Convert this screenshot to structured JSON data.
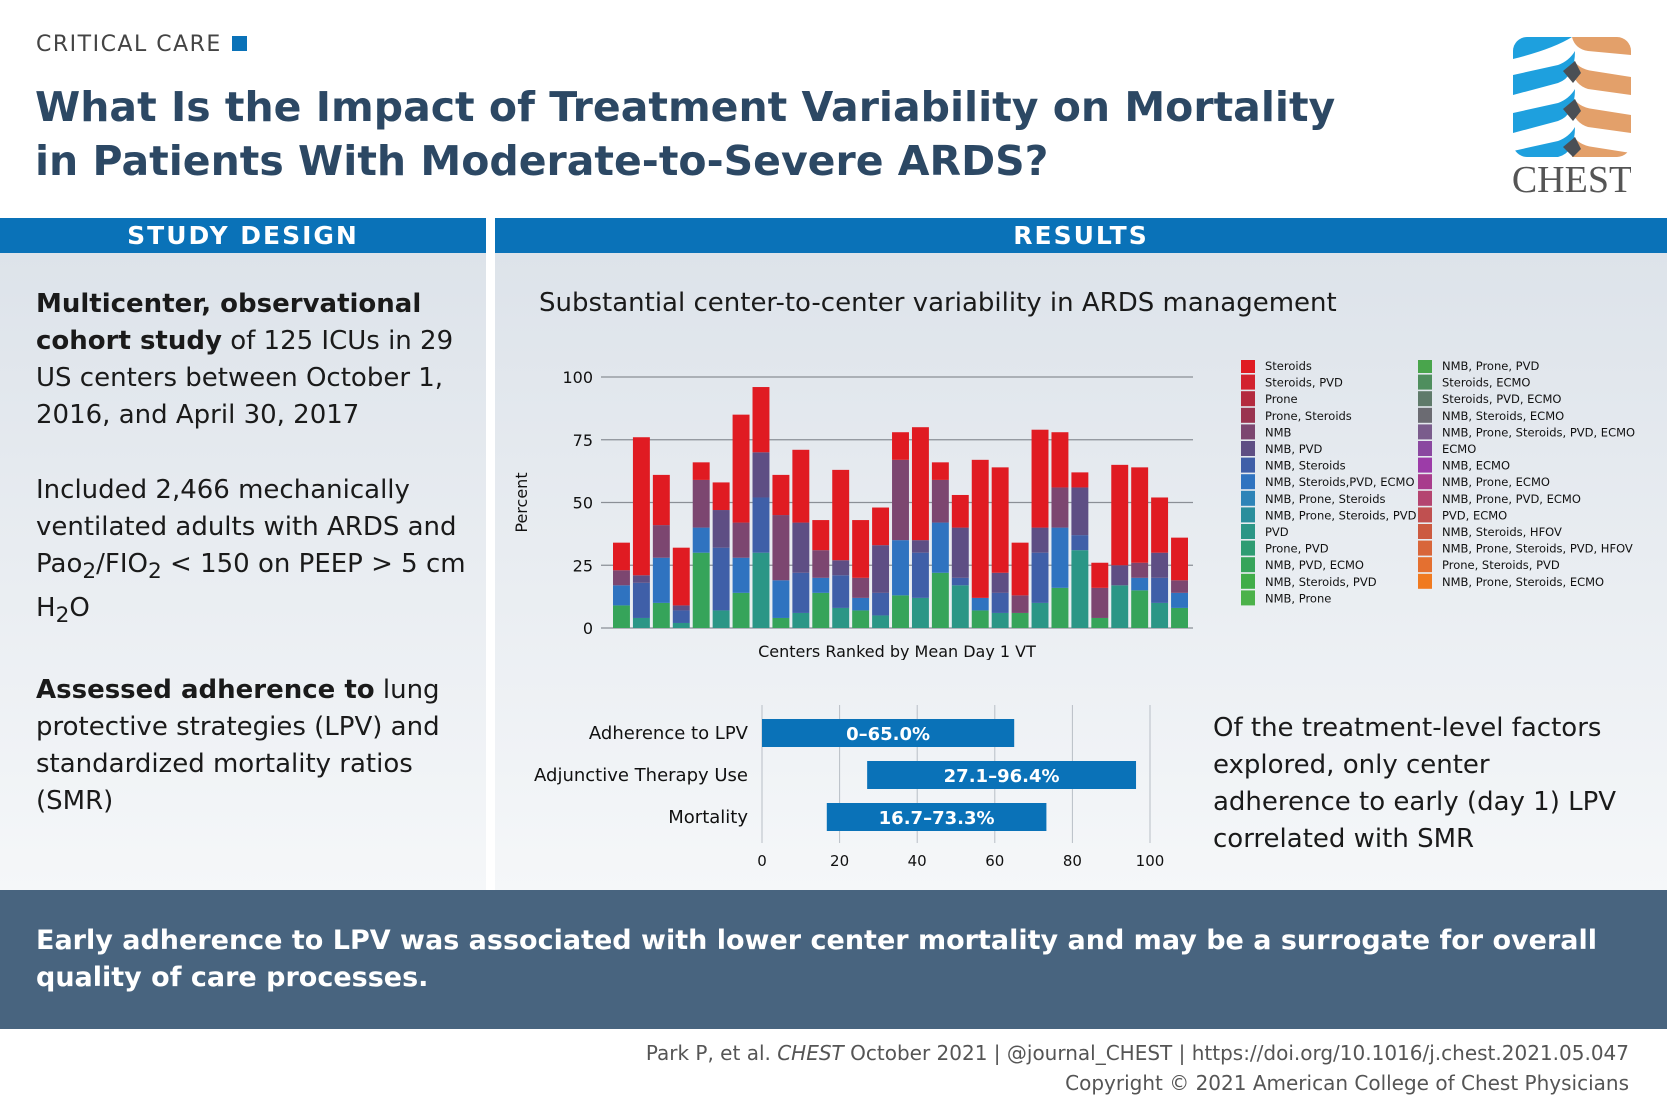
{
  "header": {
    "section": "CRITICAL CARE",
    "title_line1": "What Is the Impact of Treatment Variability on Mortality",
    "title_line2": "in Patients With Moderate-to-Severe ARDS?",
    "logo_text": "CHEST"
  },
  "study_design": {
    "heading": "STUDY DESIGN",
    "p1_bold": "Multicenter, observational cohort study",
    "p1_rest": " of 125 ICUs in 29 US centers between October 1, 2016, and April 30, 2017",
    "p2_a": "Included 2,466 mechanically ventilated adults with ARDS and Pao",
    "p2_sub1": "2",
    "p2_b": "/FIO",
    "p2_sub2": "2",
    "p2_c": " < 150 on PEEP > 5 cm H",
    "p2_sub3": "2",
    "p2_d": "O",
    "p3_bold": "Assessed adherence to",
    "p3_rest": " lung protective strategies (LPV) and standardized mortality ratios (SMR)"
  },
  "results": {
    "heading": "RESULTS",
    "chart_title": "Substantial center-to-center variability in ARDS management",
    "conclusion": "Of the treatment-level factors explored, only center adherence to early (day 1) LPV correlated with SMR"
  },
  "takeaway": "Early adherence to LPV was associated with lower center mortality and may be a surrogate for overall quality of care processes.",
  "footer": {
    "citation_a": "Park P, et al. ",
    "citation_journal": "CHEST",
    "citation_b": " October 2021  |  @journal_CHEST  |  https://doi.org/10.1016/j.chest.2021.05.047",
    "copyright": "Copyright © 2021 American College of Chest Physicians"
  },
  "colors": {
    "accent": "#0a72b8",
    "title": "#2c4864",
    "band": "#48647f"
  },
  "chart_data": [
    {
      "type": "bar",
      "stacked": true,
      "xlabel": "Centers Ranked by Mean Day 1 VT",
      "ylabel": "Percent",
      "ylim": [
        0,
        100
      ],
      "yticks": [
        0,
        25,
        50,
        75,
        100
      ],
      "grid": true,
      "legend_placement": "right",
      "legend": [
        {
          "name": "Steroids",
          "color": "#e01b22"
        },
        {
          "name": "Steroids, PVD",
          "color": "#d2222e"
        },
        {
          "name": "Prone",
          "color": "#b42a3e"
        },
        {
          "name": "Prone, Steroids",
          "color": "#9a3450"
        },
        {
          "name": "NMB",
          "color": "#7c4670"
        },
        {
          "name": "NMB, PVD",
          "color": "#5e4e84"
        },
        {
          "name": "NMB, Steroids",
          "color": "#3f5fa8"
        },
        {
          "name": "NMB, Steroids,PVD, ECMO",
          "color": "#2f73c0"
        },
        {
          "name": "NMB, Prone, Steroids",
          "color": "#2d84b8"
        },
        {
          "name": "NMB, Prone, Steroids, PVD",
          "color": "#2a8e9c"
        },
        {
          "name": "PVD",
          "color": "#2b9686"
        },
        {
          "name": "Prone, PVD",
          "color": "#2e9c72"
        },
        {
          "name": "NMB, PVD, ECMO",
          "color": "#36a45a"
        },
        {
          "name": "NMB, Steroids, PVD",
          "color": "#40ad48"
        },
        {
          "name": "NMB, Prone",
          "color": "#4cb24a"
        },
        {
          "name": "NMB, Prone, PVD",
          "color": "#49a54c"
        },
        {
          "name": "Steroids, ECMO",
          "color": "#4f8e5e"
        },
        {
          "name": "Steroids, PVD, ECMO",
          "color": "#5f7a6a"
        },
        {
          "name": "NMB, Steroids, ECMO",
          "color": "#6b6b72"
        },
        {
          "name": "NMB, Prone, Steroids, PVD, ECMO",
          "color": "#7a5c8c"
        },
        {
          "name": "ECMO",
          "color": "#8a48a0"
        },
        {
          "name": "NMB, ECMO",
          "color": "#9c3ca8"
        },
        {
          "name": "NMB, Prone, ECMO",
          "color": "#a83c8c"
        },
        {
          "name": "NMB, Prone, PVD, ECMO",
          "color": "#b44470"
        },
        {
          "name": "PVD, ECMO",
          "color": "#c05050"
        },
        {
          "name": "NMB, Steroids, HFOV",
          "color": "#cc5a40"
        },
        {
          "name": "NMB, Prone, Steroids, PVD, HFOV",
          "color": "#d8663a"
        },
        {
          "name": "Prone, Steroids, PVD",
          "color": "#e47030"
        },
        {
          "name": "NMB, Prone, Steroids, ECMO",
          "color": "#f07a20"
        }
      ],
      "segment_groups": [
        "NMB, Prone / PVD group",
        "NMB, Steroids group",
        "NMB group",
        "Steroids"
      ],
      "centers": [
        [
          9,
          8,
          6,
          11
        ],
        [
          4,
          14,
          3,
          55
        ],
        [
          10,
          18,
          13,
          20
        ],
        [
          2,
          5,
          2,
          23
        ],
        [
          30,
          10,
          19,
          7
        ],
        [
          7,
          25,
          15,
          11
        ],
        [
          14,
          14,
          14,
          43
        ],
        [
          30,
          22,
          18,
          26
        ],
        [
          4,
          15,
          26,
          16
        ],
        [
          6,
          16,
          20,
          29
        ],
        [
          14,
          6,
          11,
          12
        ],
        [
          8,
          13,
          6,
          36
        ],
        [
          7,
          5,
          8,
          23
        ],
        [
          5,
          9,
          19,
          15
        ],
        [
          13,
          22,
          32,
          11
        ],
        [
          12,
          18,
          5,
          45
        ],
        [
          22,
          20,
          17,
          7
        ],
        [
          17,
          3,
          20,
          13
        ],
        [
          7,
          5,
          0,
          55
        ],
        [
          6,
          8,
          8,
          42
        ],
        [
          6,
          0,
          7,
          21
        ],
        [
          10,
          20,
          10,
          39
        ],
        [
          16,
          24,
          16,
          22
        ],
        [
          31,
          6,
          19,
          6
        ],
        [
          4,
          0,
          12,
          10
        ],
        [
          17,
          0,
          8,
          40
        ],
        [
          15,
          5,
          6,
          38
        ],
        [
          10,
          10,
          10,
          22
        ],
        [
          8,
          6,
          5,
          17
        ]
      ]
    },
    {
      "type": "bar",
      "orientation": "horizontal",
      "range": true,
      "xlim": [
        0,
        100
      ],
      "xticks": [
        0,
        20,
        40,
        60,
        80,
        100
      ],
      "categories": [
        "Adherence to LPV",
        "Adjunctive Therapy Use",
        "Mortality"
      ],
      "ranges": [
        [
          0,
          65.0
        ],
        [
          27.1,
          96.4
        ],
        [
          16.7,
          73.3
        ]
      ],
      "labels": [
        "0–65.0%",
        "27.1–96.4%",
        "16.7–73.3%"
      ]
    }
  ]
}
